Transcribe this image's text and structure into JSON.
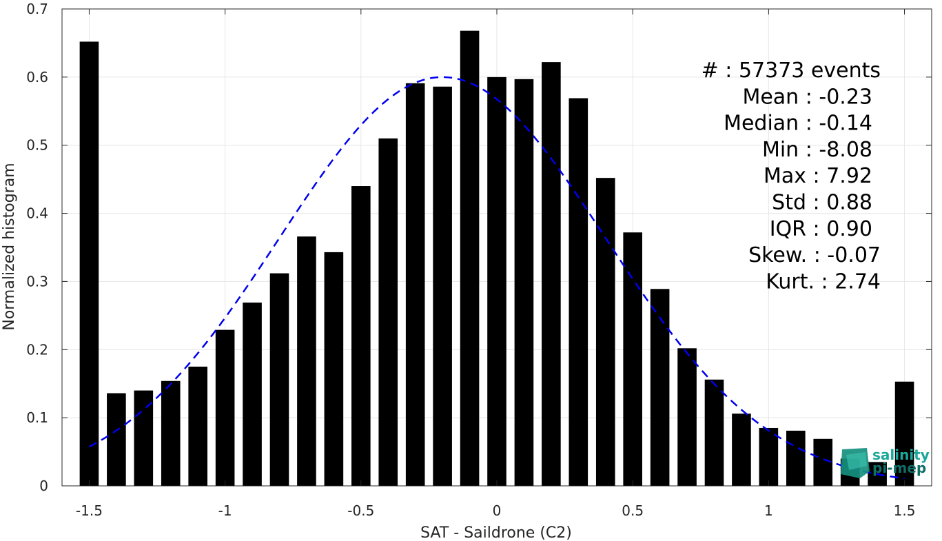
{
  "chart_data": {
    "type": "bar",
    "xlabel": "SAT - Saildrone (C2)",
    "ylabel": "Normalized histogram",
    "xlim": [
      -1.6,
      1.6
    ],
    "ylim": [
      0,
      0.7
    ],
    "grid": true,
    "x_ticks": [
      -1.5,
      -1,
      -0.5,
      0,
      0.5,
      1,
      1.5
    ],
    "x_tick_labels": [
      "-1.5",
      "-1",
      "-0.5",
      "0",
      "0.5",
      "1",
      "1.5"
    ],
    "y_ticks": [
      0,
      0.1,
      0.2,
      0.3,
      0.4,
      0.5,
      0.6,
      0.7
    ],
    "y_tick_labels": [
      "0",
      "0.1",
      "0.2",
      "0.3",
      "0.4",
      "0.5",
      "0.6",
      "0.7"
    ],
    "bar_color": "#000000",
    "bar_width": 0.07,
    "x": [
      -1.5,
      -1.4,
      -1.3,
      -1.2,
      -1.1,
      -1.0,
      -0.9,
      -0.8,
      -0.7,
      -0.6,
      -0.5,
      -0.4,
      -0.3,
      -0.2,
      -0.1,
      0.0,
      0.1,
      0.2,
      0.3,
      0.4,
      0.5,
      0.6,
      0.7,
      0.8,
      0.9,
      1.0,
      1.1,
      1.2,
      1.3,
      1.4,
      1.5
    ],
    "values": [
      0.652,
      0.136,
      0.14,
      0.154,
      0.175,
      0.229,
      0.269,
      0.312,
      0.366,
      0.343,
      0.44,
      0.51,
      0.591,
      0.586,
      0.668,
      0.6,
      0.597,
      0.622,
      0.569,
      0.452,
      0.372,
      0.289,
      0.202,
      0.156,
      0.106,
      0.085,
      0.081,
      0.069,
      0.04,
      0.035,
      0.153
    ],
    "fit_curve": {
      "style": "dashed",
      "color": "#0000ee",
      "mean": -0.2,
      "std": 0.6,
      "peak": 0.6,
      "x_range": [
        -1.5,
        1.5
      ]
    }
  },
  "stats": [
    {
      "label": "#",
      "value": ": 57373 events"
    },
    {
      "label": "Mean",
      "value": ": -0.23"
    },
    {
      "label": "Median",
      "value": ": -0.14"
    },
    {
      "label": "Min",
      "value": ": -8.08"
    },
    {
      "label": "Max",
      "value": ": 7.92"
    },
    {
      "label": "Std",
      "value": ": 0.88"
    },
    {
      "label": "IQR",
      "value": ": 0.90"
    },
    {
      "label": "Skew.",
      "value": ": -0.07"
    },
    {
      "label": "Kurt.",
      "value": ": 2.74"
    }
  ],
  "logo": {
    "line1": "salinity",
    "line2": "pi-mep",
    "color1": "#1aa89a",
    "color2": "#0f6e66"
  }
}
